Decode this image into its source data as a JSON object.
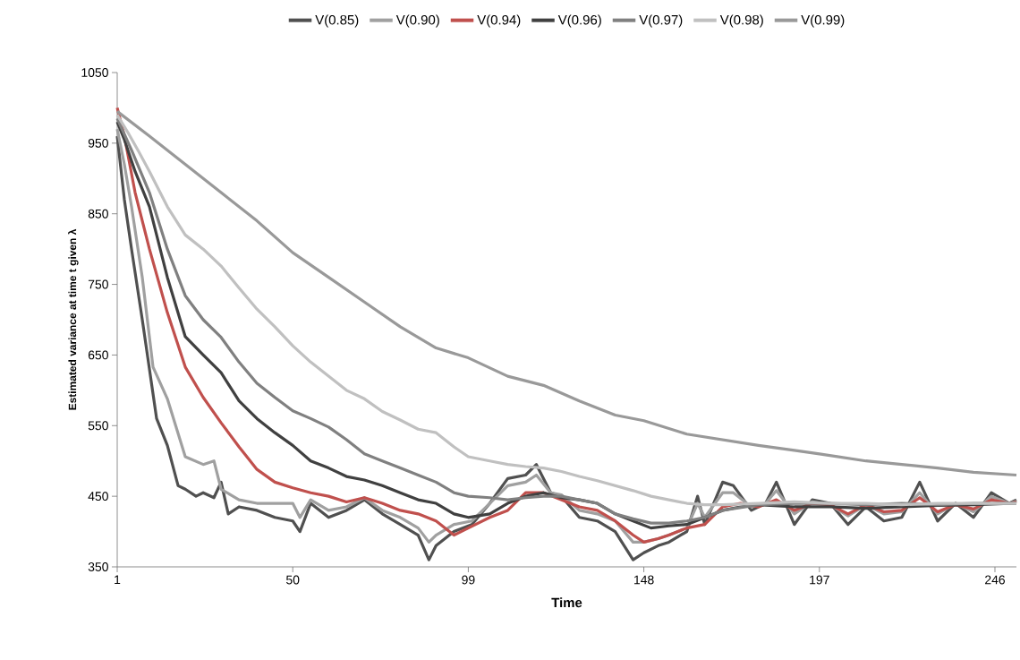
{
  "chart_data": {
    "type": "line",
    "xlabel": "Time",
    "ylabel": "Estimated variance at time t given λ",
    "xlim": [
      1,
      252
    ],
    "ylim": [
      350,
      1050
    ],
    "xticks": [
      1,
      50,
      99,
      148,
      197,
      246
    ],
    "yticks": [
      350,
      450,
      550,
      650,
      750,
      850,
      950,
      1050
    ],
    "legend": "top",
    "grid": false,
    "marker": "none",
    "line_style": "solid",
    "series": [
      {
        "name": "V(0.85)",
        "color": "#505050",
        "x": [
          1,
          3,
          5,
          8,
          12,
          15,
          18,
          20,
          23,
          25,
          28,
          30,
          32,
          35,
          40,
          45,
          50,
          52,
          55,
          60,
          65,
          70,
          75,
          80,
          85,
          88,
          90,
          95,
          100,
          105,
          110,
          115,
          118,
          122,
          125,
          130,
          135,
          140,
          145,
          148,
          152,
          155,
          160,
          163,
          165,
          170,
          173,
          178,
          182,
          185,
          190,
          195,
          200,
          205,
          210,
          215,
          220,
          225,
          230,
          235,
          240,
          245,
          250,
          252
        ],
        "values": [
          960,
          870,
          800,
          700,
          560,
          522,
          465,
          460,
          450,
          455,
          448,
          470,
          425,
          435,
          430,
          420,
          415,
          400,
          440,
          420,
          430,
          445,
          425,
          410,
          395,
          360,
          380,
          400,
          410,
          440,
          475,
          480,
          495,
          455,
          450,
          420,
          415,
          400,
          360,
          370,
          380,
          385,
          400,
          450,
          410,
          470,
          465,
          430,
          440,
          470,
          410,
          445,
          440,
          410,
          435,
          415,
          420,
          470,
          415,
          440,
          420,
          455,
          440,
          445
        ]
      },
      {
        "name": "V(0.90)",
        "color": "#a0a0a0",
        "x": [
          1,
          3,
          5,
          8,
          11,
          15,
          20,
          25,
          28,
          30,
          35,
          40,
          45,
          50,
          52,
          55,
          60,
          65,
          70,
          75,
          80,
          85,
          88,
          90,
          95,
          100,
          105,
          110,
          115,
          118,
          122,
          125,
          130,
          135,
          140,
          145,
          148,
          152,
          155,
          160,
          163,
          165,
          170,
          173,
          178,
          182,
          185,
          190,
          195,
          200,
          205,
          210,
          215,
          220,
          225,
          230,
          235,
          240,
          245,
          250,
          252
        ],
        "values": [
          970,
          920,
          860,
          760,
          633,
          588,
          506,
          495,
          500,
          460,
          445,
          440,
          440,
          440,
          420,
          445,
          430,
          435,
          448,
          430,
          420,
          405,
          385,
          395,
          410,
          415,
          440,
          465,
          470,
          480,
          455,
          452,
          430,
          425,
          415,
          385,
          385,
          390,
          395,
          405,
          440,
          420,
          455,
          455,
          435,
          440,
          458,
          425,
          442,
          438,
          422,
          438,
          425,
          428,
          455,
          425,
          440,
          428,
          450,
          440,
          443
        ]
      },
      {
        "name": "V(0.94)",
        "color": "#c0504d",
        "x": [
          1,
          3,
          6,
          10,
          15,
          20,
          25,
          30,
          35,
          40,
          45,
          50,
          55,
          60,
          65,
          70,
          75,
          80,
          85,
          90,
          95,
          99,
          105,
          110,
          115,
          120,
          125,
          130,
          135,
          140,
          145,
          148,
          152,
          155,
          160,
          165,
          170,
          175,
          180,
          185,
          190,
          195,
          200,
          205,
          210,
          215,
          220,
          225,
          230,
          235,
          240,
          245,
          250,
          252
        ],
        "values": [
          1000,
          960,
          880,
          800,
          710,
          633,
          590,
          554,
          520,
          488,
          470,
          462,
          455,
          450,
          442,
          448,
          440,
          430,
          425,
          415,
          395,
          405,
          420,
          430,
          455,
          455,
          445,
          435,
          430,
          415,
          395,
          385,
          390,
          395,
          405,
          410,
          435,
          440,
          435,
          445,
          430,
          440,
          438,
          425,
          438,
          428,
          430,
          448,
          428,
          438,
          432,
          445,
          440,
          442
        ]
      },
      {
        "name": "V(0.96)",
        "color": "#404040",
        "x": [
          1,
          3,
          6,
          10,
          15,
          20,
          25,
          30,
          35,
          40,
          45,
          50,
          55,
          60,
          65,
          70,
          75,
          80,
          85,
          90,
          95,
          99,
          105,
          110,
          115,
          120,
          125,
          130,
          135,
          140,
          145,
          150,
          155,
          160,
          165,
          170,
          175,
          180,
          190,
          200,
          210,
          220,
          230,
          240,
          250,
          252
        ],
        "values": [
          980,
          955,
          910,
          860,
          760,
          676,
          650,
          625,
          585,
          560,
          540,
          522,
          500,
          490,
          478,
          473,
          465,
          455,
          445,
          440,
          425,
          420,
          425,
          440,
          450,
          455,
          448,
          445,
          440,
          425,
          415,
          405,
          408,
          410,
          420,
          430,
          435,
          438,
          435,
          435,
          433,
          435,
          437,
          438,
          440,
          440
        ]
      },
      {
        "name": "V(0.97)",
        "color": "#808080",
        "x": [
          1,
          5,
          10,
          15,
          20,
          25,
          30,
          35,
          40,
          45,
          50,
          55,
          60,
          65,
          70,
          75,
          80,
          85,
          90,
          95,
          99,
          105,
          110,
          115,
          120,
          125,
          130,
          135,
          140,
          145,
          150,
          155,
          160,
          165,
          170,
          180,
          190,
          200,
          210,
          220,
          230,
          240,
          250,
          252
        ],
        "values": [
          985,
          940,
          880,
          800,
          734,
          700,
          675,
          640,
          610,
          590,
          571,
          560,
          548,
          530,
          510,
          500,
          490,
          480,
          470,
          455,
          450,
          448,
          445,
          448,
          450,
          450,
          445,
          440,
          425,
          418,
          412,
          412,
          415,
          420,
          430,
          438,
          440,
          440,
          438,
          440,
          438,
          440,
          440,
          440
        ]
      },
      {
        "name": "V(0.98)",
        "color": "#c0c0c0",
        "x": [
          1,
          4,
          7,
          10,
          15,
          20,
          25,
          30,
          35,
          40,
          45,
          50,
          55,
          60,
          65,
          70,
          75,
          80,
          85,
          90,
          95,
          99,
          105,
          110,
          115,
          120,
          125,
          130,
          135,
          140,
          145,
          150,
          155,
          160,
          165,
          170,
          180,
          190,
          200,
          210,
          220,
          230,
          240,
          250,
          252
        ],
        "values": [
          990,
          965,
          938,
          910,
          860,
          820,
          800,
          776,
          745,
          715,
          690,
          663,
          640,
          620,
          600,
          588,
          570,
          558,
          545,
          540,
          520,
          506,
          500,
          495,
          492,
          490,
          485,
          478,
          472,
          465,
          458,
          450,
          445,
          440,
          438,
          438,
          440,
          442,
          440,
          440,
          438,
          440,
          440,
          440,
          440
        ]
      },
      {
        "name": "V(0.99)",
        "color": "#999999",
        "x": [
          1,
          10,
          20,
          30,
          40,
          50,
          60,
          70,
          80,
          90,
          99,
          110,
          120,
          130,
          140,
          148,
          160,
          170,
          180,
          190,
          197,
          210,
          220,
          230,
          240,
          252
        ],
        "values": [
          995,
          960,
          920,
          880,
          840,
          795,
          760,
          725,
          690,
          660,
          646,
          620,
          607,
          585,
          565,
          557,
          538,
          530,
          522,
          515,
          510,
          500,
          495,
          490,
          484,
          480
        ]
      }
    ]
  }
}
